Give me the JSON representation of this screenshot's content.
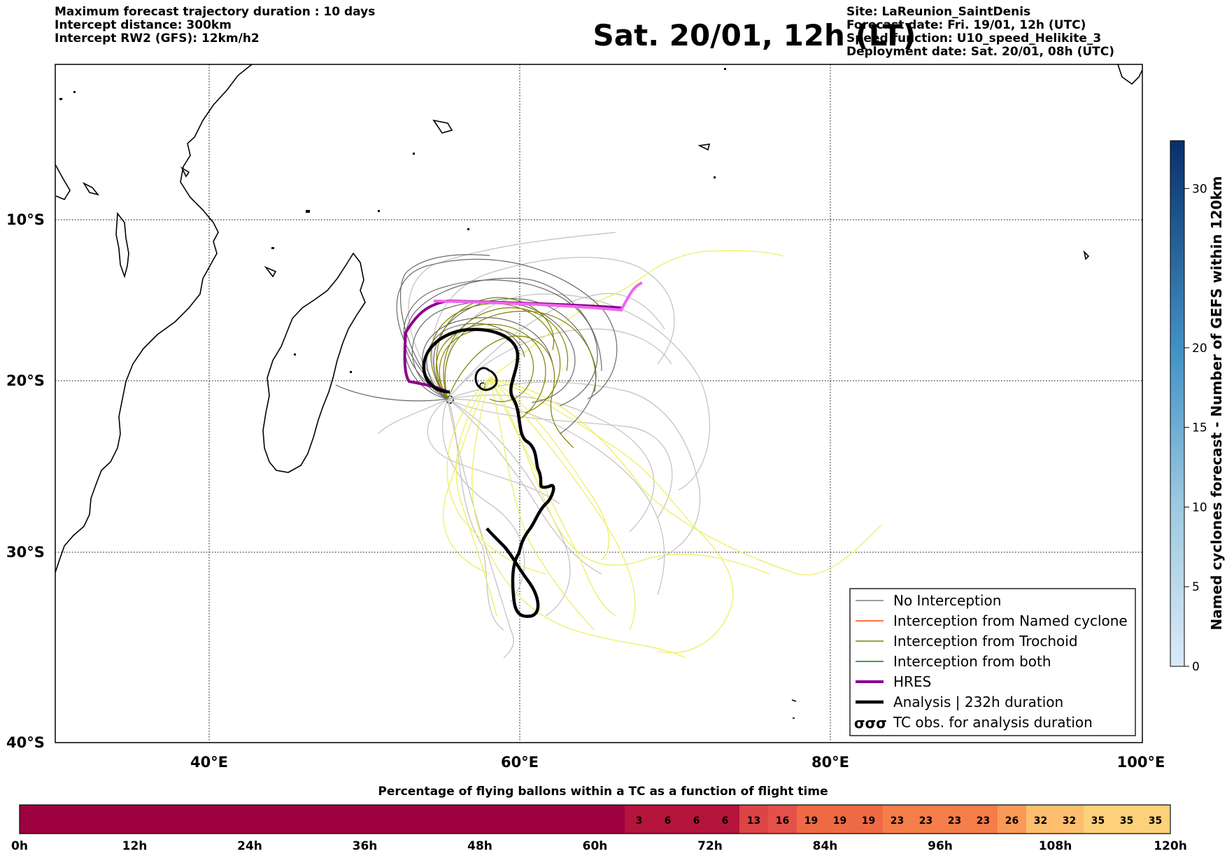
{
  "header": {
    "left_lines": [
      "Maximum forecast trajectory duration : 10 days",
      "Intercept distance: 300km",
      "Intercept RW2 (GFS):  12km/h2"
    ],
    "right_lines": [
      "Site: LaReunion_SaintDenis",
      "Forecast date: Fri. 19/01, 12h (UTC)",
      "Speed function: U10_speed_Helikite_3",
      "Deployment date: Sat. 20/01, 08h (UTC)"
    ],
    "title": "Sat. 20/01, 12h (LT)"
  },
  "map": {
    "lon_ticks": [
      "40°E",
      "60°E",
      "80°E",
      "100°E"
    ],
    "lat_ticks": [
      "10°S",
      "20°S",
      "30°S",
      "40°S"
    ],
    "lon_range": [
      30,
      100
    ],
    "lat_range": [
      0,
      -40
    ],
    "colors": {
      "no_interception": "#7f7f7f",
      "named_cyclone": "#ff4500",
      "trochoid": "#808000",
      "both": "#008000",
      "hres": "#8b008b",
      "analysis": "#000000",
      "forecast_gray": "#c0c0c0",
      "forecast_yellow": "#eeee66",
      "forecast_magenta": "#ee66ee"
    }
  },
  "legend": {
    "items": [
      "No Interception",
      "Interception from Named cyclone",
      "Interception from Trochoid",
      "Interception from both",
      "HRES",
      "Analysis | 232h duration",
      "TC obs. for analysis duration"
    ],
    "tc_symbol": "σσσ"
  },
  "colorbar": {
    "label": "Named cyclones forecast - Number of GEFS within 120km",
    "ticks": [
      "0",
      "5",
      "10",
      "15",
      "20",
      "30"
    ],
    "tick_values": [
      0,
      5,
      10,
      15,
      20,
      30
    ],
    "max": 33
  },
  "bottom_bar": {
    "title": "Percentage of flying ballons within a TC as a function of flight time",
    "cells": [
      "3",
      "6",
      "6",
      "6",
      "13",
      "16",
      "19",
      "19",
      "19",
      "23",
      "23",
      "23",
      "23",
      "26",
      "32",
      "32",
      "35",
      "35",
      "35"
    ],
    "time_ticks": [
      "0h",
      "12h",
      "24h",
      "36h",
      "48h",
      "60h",
      "72h",
      "84h",
      "96h",
      "108h",
      "120h"
    ]
  }
}
